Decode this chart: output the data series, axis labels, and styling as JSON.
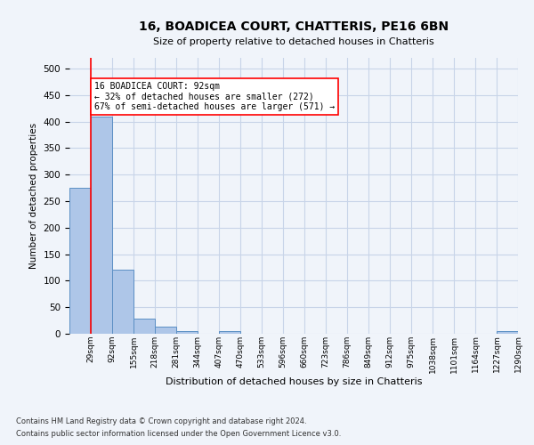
{
  "title1": "16, BOADICEA COURT, CHATTERIS, PE16 6BN",
  "title2": "Size of property relative to detached houses in Chatteris",
  "xlabel": "Distribution of detached houses by size in Chatteris",
  "ylabel": "Number of detached properties",
  "footer1": "Contains HM Land Registry data © Crown copyright and database right 2024.",
  "footer2": "Contains public sector information licensed under the Open Government Licence v3.0.",
  "bin_labels": [
    "29sqm",
    "92sqm",
    "155sqm",
    "218sqm",
    "281sqm",
    "344sqm",
    "407sqm",
    "470sqm",
    "533sqm",
    "596sqm",
    "660sqm",
    "723sqm",
    "786sqm",
    "849sqm",
    "912sqm",
    "975sqm",
    "1038sqm",
    "1101sqm",
    "1164sqm",
    "1227sqm",
    "1290sqm"
  ],
  "bar_values": [
    275,
    410,
    120,
    28,
    14,
    5,
    0,
    5,
    0,
    0,
    0,
    0,
    0,
    0,
    0,
    0,
    0,
    0,
    0,
    0,
    5
  ],
  "bar_color": "#aec6e8",
  "bar_edge_color": "#5b8fc4",
  "reference_line_x": 1,
  "reference_line_color": "red",
  "annotation_line1": "16 BOADICEA COURT: 92sqm",
  "annotation_line2": "← 32% of detached houses are smaller (272)",
  "annotation_line3": "67% of semi-detached houses are larger (571) →",
  "ylim": [
    0,
    520
  ],
  "yticks": [
    0,
    50,
    100,
    150,
    200,
    250,
    300,
    350,
    400,
    450,
    500
  ],
  "background_color": "#f0f4fa",
  "grid_color": "#c8d4e8"
}
